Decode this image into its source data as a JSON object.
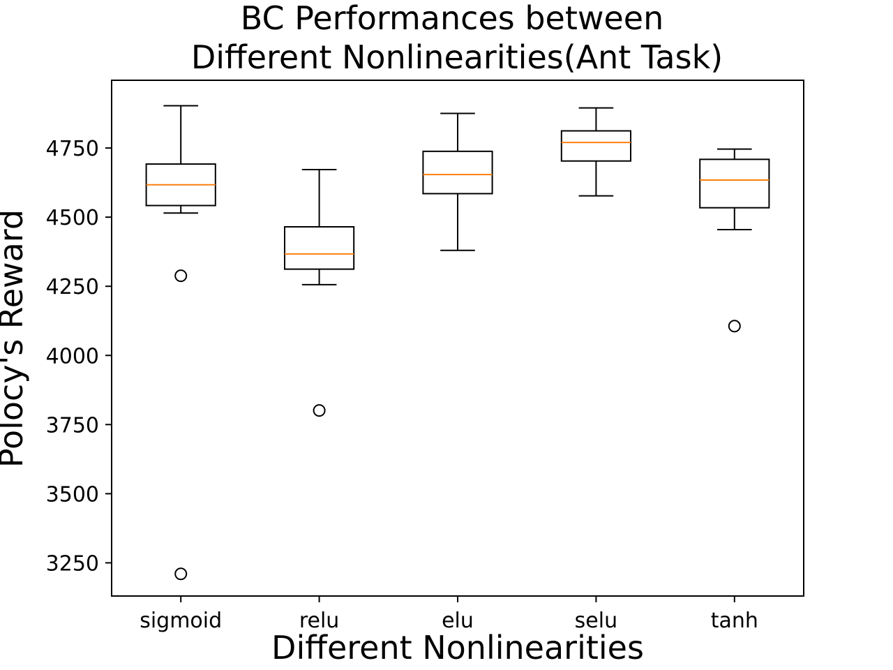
{
  "chart_data": {
    "type": "box",
    "title": [
      "BC Performances between",
      "Different Nonlinearities(Ant Task)"
    ],
    "xlabel": "Different Nonlinearities",
    "ylabel": "Polocy's Reward",
    "ylim": [
      3130,
      4995
    ],
    "yticks": [
      3250,
      3500,
      3750,
      4000,
      4250,
      4500,
      4750
    ],
    "grid": false,
    "colors": {
      "box": "#000000",
      "median": "#ff7f0e",
      "frame": "#000000"
    },
    "categories": [
      "sigmoid",
      "relu",
      "elu",
      "selu",
      "tanh"
    ],
    "boxes": [
      {
        "whisker_low": 4515,
        "q1": 4542,
        "median": 4617,
        "q3": 4692,
        "whisker_high": 4903,
        "outliers": [
          4288,
          3210
        ]
      },
      {
        "whisker_low": 4256,
        "q1": 4312,
        "median": 4367,
        "q3": 4465,
        "whisker_high": 4672,
        "outliers": [
          3801
        ]
      },
      {
        "whisker_low": 4380,
        "q1": 4585,
        "median": 4654,
        "q3": 4738,
        "whisker_high": 4875,
        "outliers": []
      },
      {
        "whisker_low": 4577,
        "q1": 4703,
        "median": 4770,
        "q3": 4812,
        "whisker_high": 4895,
        "outliers": []
      },
      {
        "whisker_low": 4455,
        "q1": 4534,
        "median": 4634,
        "q3": 4709,
        "whisker_high": 4746,
        "outliers": [
          4106
        ]
      }
    ]
  }
}
